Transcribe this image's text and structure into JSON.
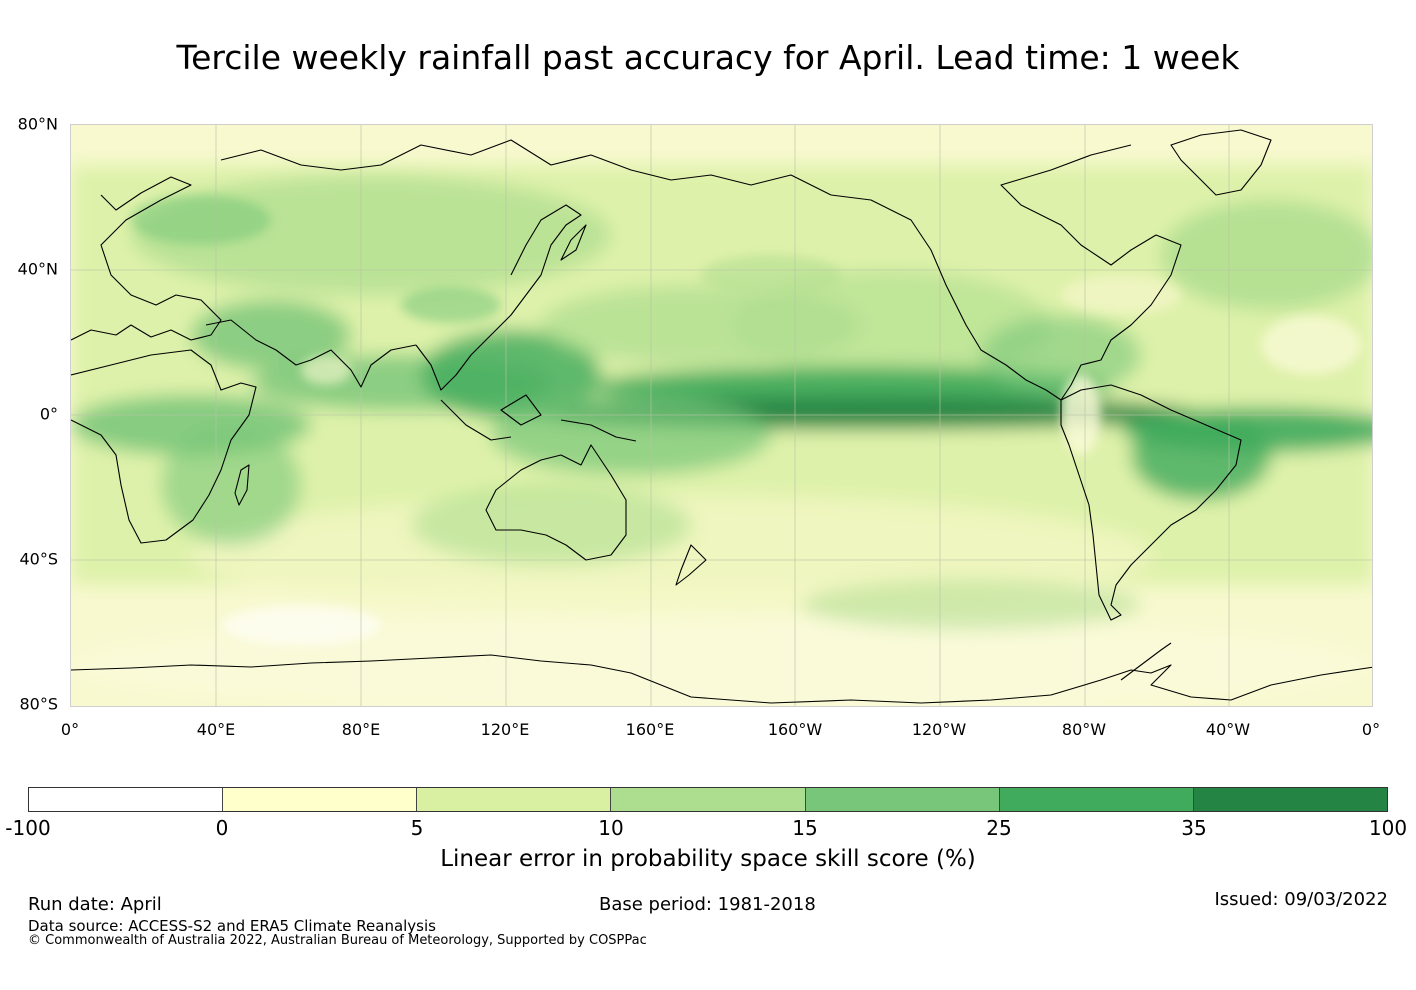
{
  "title": "Tercile weekly rainfall past accuracy for April. Lead time: 1 week",
  "map": {
    "lat_labels": [
      "80°N",
      "40°N",
      "0°",
      "40°S",
      "80°S"
    ],
    "lon_labels": [
      "0°",
      "40°E",
      "80°E",
      "120°E",
      "160°E",
      "160°W",
      "120°W",
      "80°W",
      "40°W",
      "0°"
    ],
    "colors": {
      "ocean_base": "#f8f9cf",
      "equatorial_band": "#2b8a47",
      "coastline": "#000000",
      "gridline": "#b9c4a6"
    }
  },
  "colorbar": {
    "ticks": [
      "-100",
      "0",
      "5",
      "10",
      "15",
      "25",
      "35",
      "100"
    ],
    "colors": [
      "#ffffff",
      "#ffffcc",
      "#d9f0a3",
      "#addd8e",
      "#78c679",
      "#41ab5d",
      "#238443"
    ],
    "label": "Linear error in probability space skill score (%)"
  },
  "footer": {
    "run_date": "Run date: April",
    "base_period": "Base period: 1981-2018",
    "issued": "Issued: 09/03/2022",
    "data_source": "Data source: ACCESS-S2 and ERA5 Climate Reanalysis",
    "copyright": "© Commonwealth of Australia 2022, Australian Bureau of Meteorology, Supported by COSPPac"
  }
}
